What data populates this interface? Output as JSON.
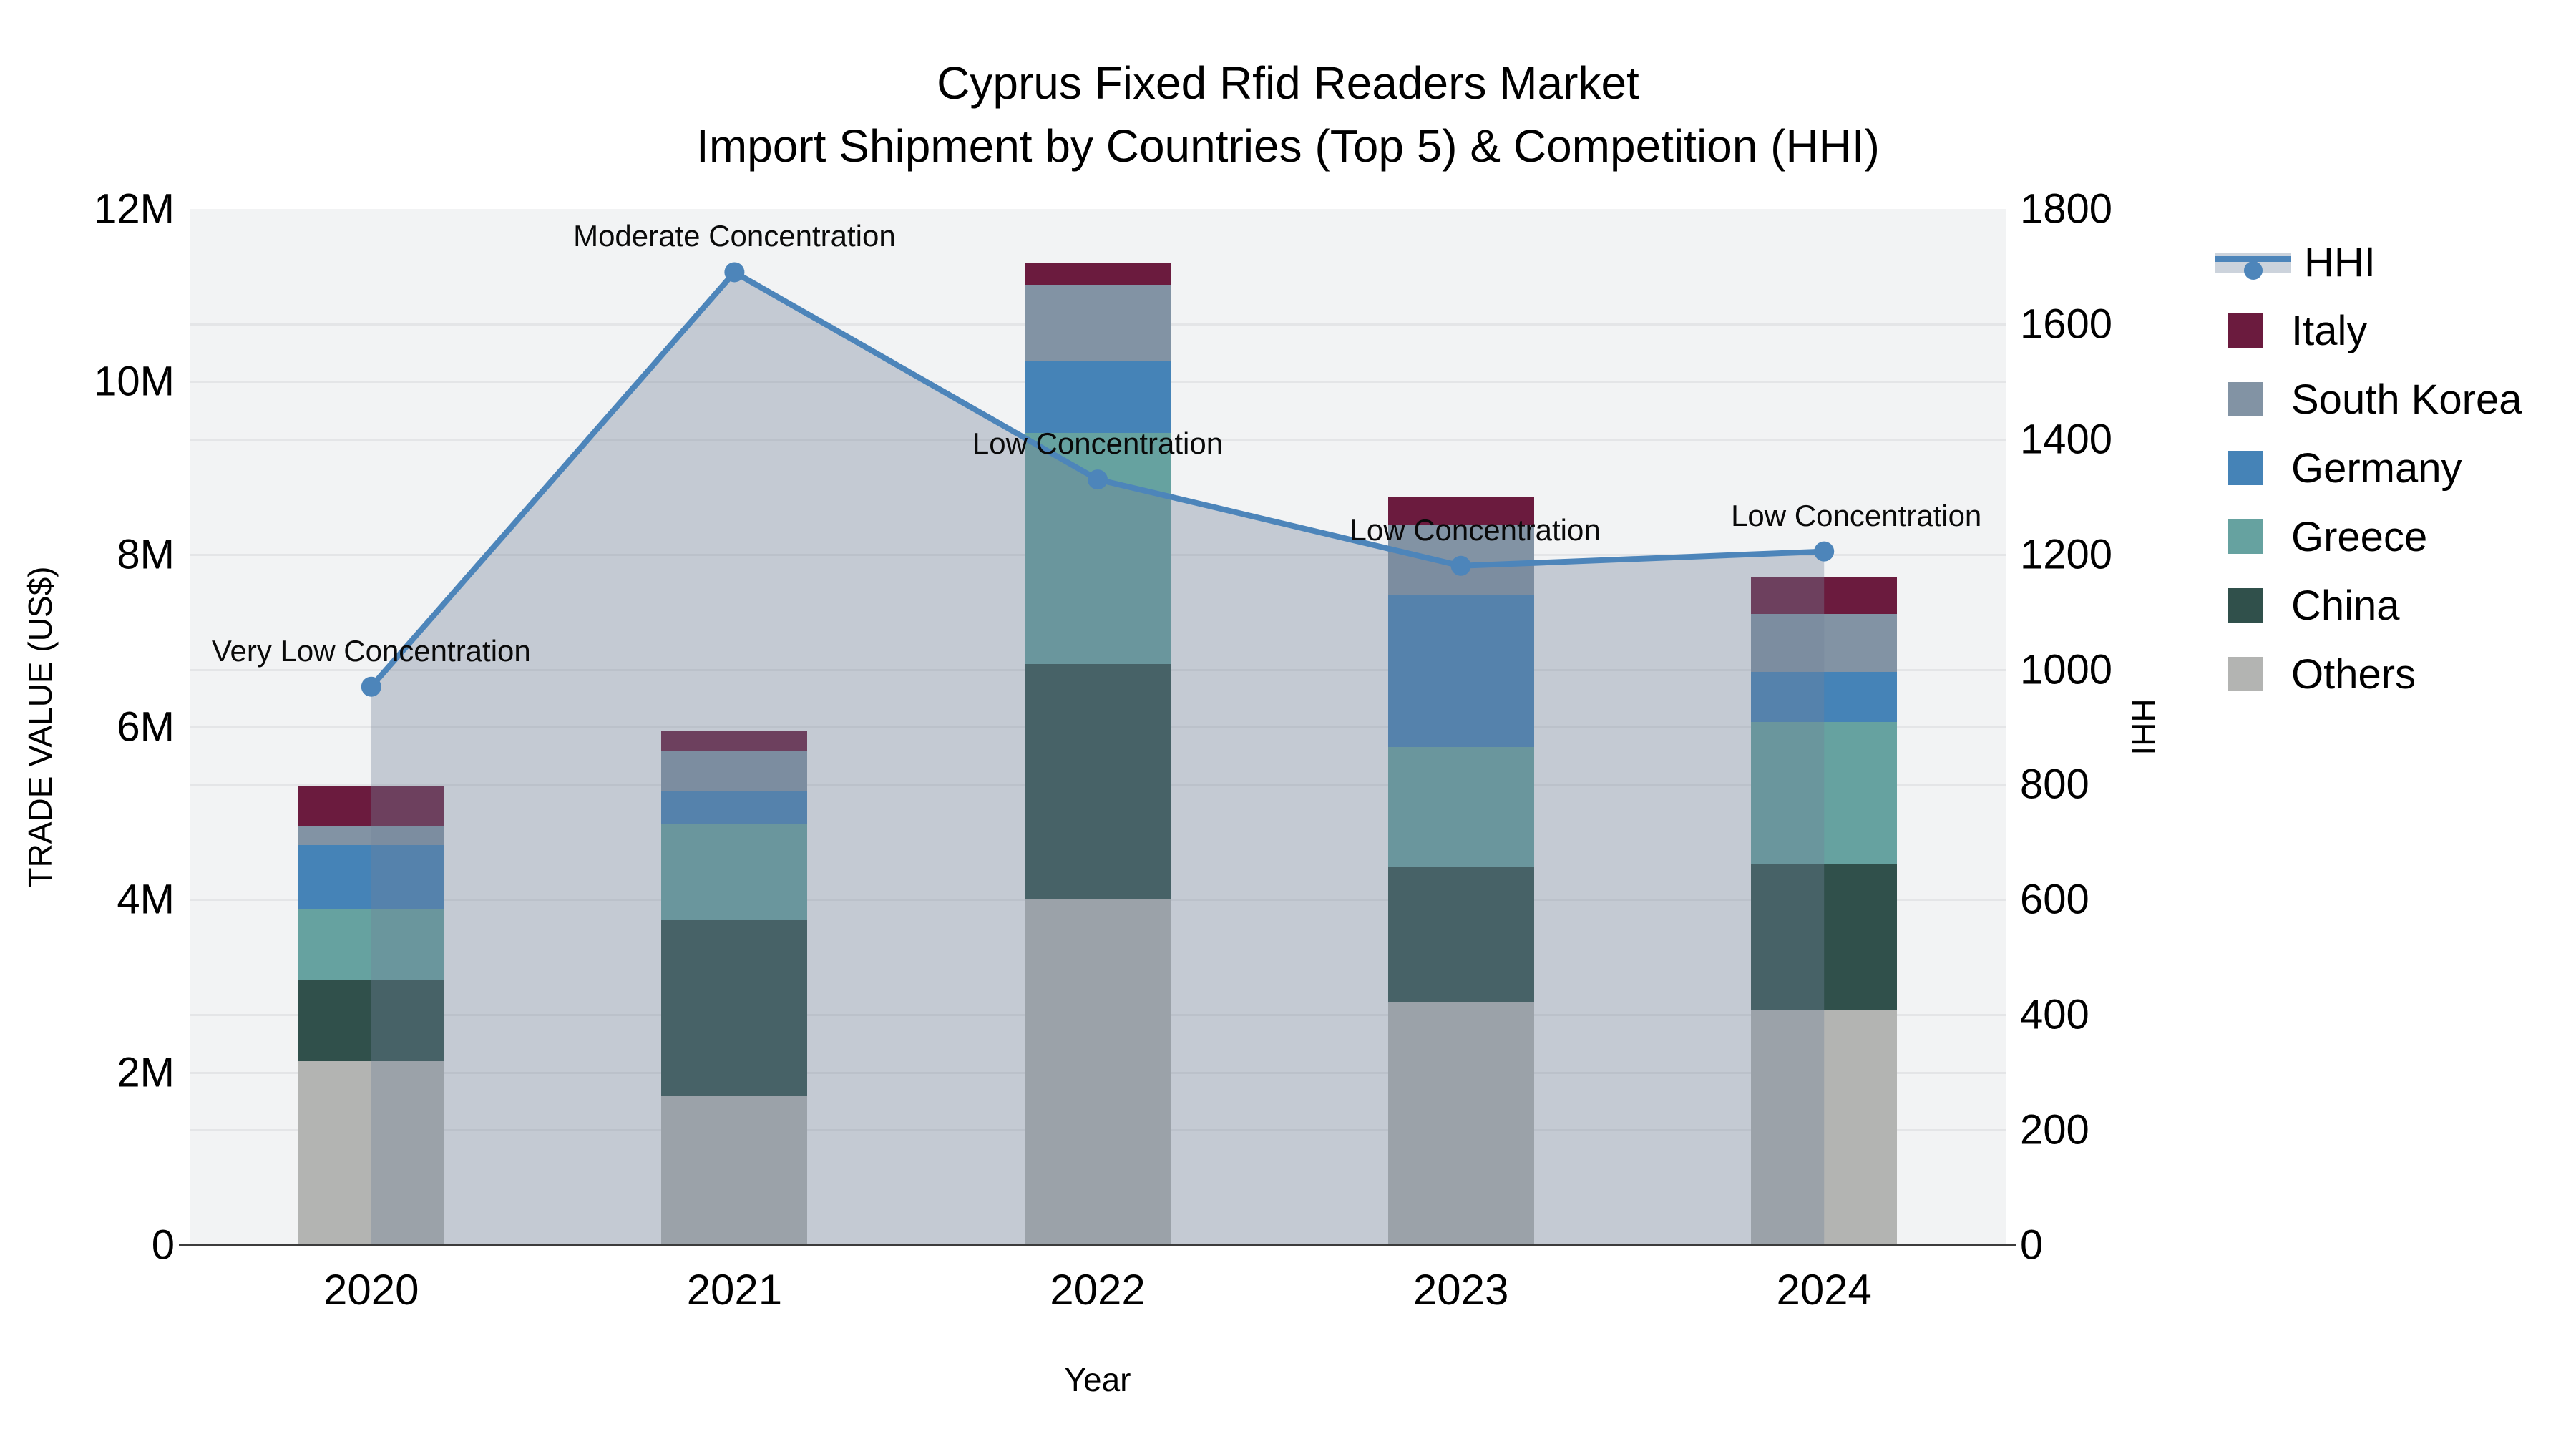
{
  "title": {
    "line1": "Cyprus Fixed Rfid Readers Market",
    "line2": "Import Shipment by Countries (Top 5) & Competition (HHI)"
  },
  "axes": {
    "x": {
      "title": "Year",
      "categories": [
        "2020",
        "2021",
        "2022",
        "2023",
        "2024"
      ]
    },
    "y_left": {
      "title": "TRADE VALUE (US$)",
      "tick_labels": [
        "0",
        "2M",
        "4M",
        "6M",
        "8M",
        "10M",
        "12M"
      ],
      "tick_values": [
        0,
        2000000,
        4000000,
        6000000,
        8000000,
        10000000,
        12000000
      ],
      "range": [
        0,
        12000000
      ]
    },
    "y_right": {
      "title": "HHI",
      "tick_labels": [
        "0",
        "200",
        "400",
        "600",
        "800",
        "1000",
        "1200",
        "1400",
        "1600",
        "1800"
      ],
      "tick_values": [
        0,
        200,
        400,
        600,
        800,
        1000,
        1200,
        1400,
        1600,
        1800
      ],
      "range": [
        0,
        1800
      ]
    }
  },
  "legend": {
    "items": [
      {
        "label": "HHI",
        "kind": "line",
        "color": "#4d85ba"
      },
      {
        "label": "Italy",
        "kind": "swatch",
        "color": "#6b1b3e"
      },
      {
        "label": "South Korea",
        "kind": "swatch",
        "color": "#8293a4"
      },
      {
        "label": "Germany",
        "kind": "swatch",
        "color": "#4583b7"
      },
      {
        "label": "Greece",
        "kind": "swatch",
        "color": "#66a2a0"
      },
      {
        "label": "China",
        "kind": "swatch",
        "color": "#30504b"
      },
      {
        "label": "Others",
        "kind": "swatch",
        "color": "#b3b4b2"
      }
    ]
  },
  "colors": {
    "plot_background": "#f2f3f4",
    "gridline": "#e4e5e7",
    "axis_line": "#3c3c3c",
    "hhi_line": "#4d85ba",
    "hhi_fill": "rgba(113,129,153,0.36)",
    "text": "#000000"
  },
  "chart_data": {
    "type": "bar",
    "subtype": "stacked-bars-with-line",
    "title": "Cyprus Fixed Rfid Readers Market — Import Shipment by Countries (Top 5) & Competition (HHI)",
    "xlabel": "Year",
    "ylabel_left": "TRADE VALUE (US$)",
    "ylabel_right": "HHI",
    "ylim_left": [
      0,
      12000000
    ],
    "ylim_right": [
      0,
      1800
    ],
    "grid": true,
    "legend_position": "right",
    "categories": [
      "2020",
      "2021",
      "2022",
      "2023",
      "2024"
    ],
    "stack_order_bottom_to_top": [
      "Others",
      "China",
      "Greece",
      "Germany",
      "South Korea",
      "Italy"
    ],
    "series": [
      {
        "name": "Italy",
        "color": "#6b1b3e",
        "values": [
          470000,
          220000,
          260000,
          330000,
          420000
        ]
      },
      {
        "name": "South Korea",
        "color": "#8293a4",
        "values": [
          220000,
          470000,
          880000,
          810000,
          670000
        ]
      },
      {
        "name": "Germany",
        "color": "#4583b7",
        "values": [
          740000,
          380000,
          830000,
          1760000,
          580000
        ]
      },
      {
        "name": "Greece",
        "color": "#66a2a0",
        "values": [
          820000,
          1120000,
          2680000,
          1390000,
          1650000
        ]
      },
      {
        "name": "China",
        "color": "#30504b",
        "values": [
          940000,
          2040000,
          2730000,
          1560000,
          1680000
        ]
      },
      {
        "name": "Others",
        "color": "#b3b4b2",
        "values": [
          2130000,
          1720000,
          4000000,
          2820000,
          2730000
        ]
      }
    ],
    "bar_totals": [
      5320000,
      5950000,
      11380000,
      8670000,
      7730000
    ],
    "line_series": {
      "name": "HHI",
      "axis": "right",
      "color": "#4d85ba",
      "area_fill": true,
      "values": [
        970,
        1690,
        1330,
        1180,
        1205
      ]
    },
    "annotations": [
      {
        "text": "Very Low Concentration",
        "x_index": 0,
        "hhi": 970,
        "dx": 0
      },
      {
        "text": "Moderate Concentration",
        "x_index": 1,
        "hhi": 1690,
        "dx": 0
      },
      {
        "text": "Low Concentration",
        "x_index": 2,
        "hhi": 1330,
        "dx": 0
      },
      {
        "text": "Low Concentration",
        "x_index": 3,
        "hhi": 1180,
        "dx": 20
      },
      {
        "text": "Low Concentration",
        "x_index": 4,
        "hhi": 1205,
        "dx": 45
      }
    ]
  }
}
